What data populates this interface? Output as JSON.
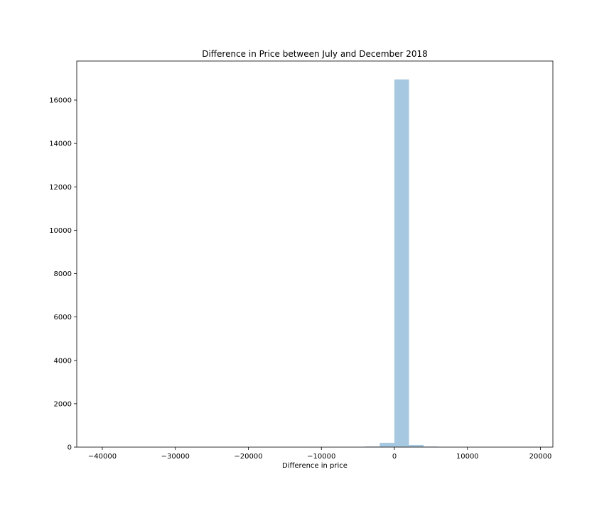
{
  "chart_data": {
    "type": "bar",
    "title": "Difference in Price between July and December 2018",
    "xlabel": "Difference in price",
    "ylabel": "",
    "bar_color": "#a6c8e0",
    "xlim": [
      -43500,
      21700
    ],
    "ylim": [
      0,
      17800
    ],
    "xticks": [
      -40000,
      -30000,
      -20000,
      -10000,
      0,
      10000,
      20000
    ],
    "xtick_labels": [
      "−40000",
      "−30000",
      "−20000",
      "−10000",
      "0",
      "10000",
      "20000"
    ],
    "yticks": [
      0,
      2000,
      4000,
      6000,
      8000,
      10000,
      12000,
      14000,
      16000
    ],
    "ytick_labels": [
      "0",
      "2000",
      "4000",
      "6000",
      "8000",
      "10000",
      "12000",
      "14000",
      "16000"
    ],
    "grid": false,
    "bins": [
      {
        "x0": -4000,
        "x1": -2000,
        "value": 30
      },
      {
        "x0": -2000,
        "x1": 0,
        "value": 200
      },
      {
        "x0": 0,
        "x1": 2000,
        "value": 16950
      },
      {
        "x0": 2000,
        "x1": 4000,
        "value": 100
      },
      {
        "x0": 4000,
        "x1": 6000,
        "value": 25
      }
    ]
  }
}
